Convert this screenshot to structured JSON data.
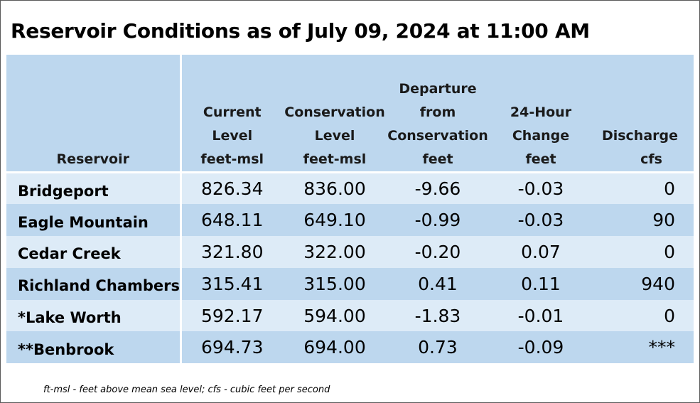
{
  "title": "Reservoir Conditions as of July 09, 2024 at 11:00 AM",
  "table": {
    "headers": [
      {
        "lines": [
          "Reservoir"
        ],
        "unit": ""
      },
      {
        "lines": [
          "Current",
          "Level"
        ],
        "unit": "feet-msl"
      },
      {
        "lines": [
          "Conservation",
          "Level"
        ],
        "unit": "feet-msl"
      },
      {
        "lines": [
          "Departure",
          "from",
          "Conservation"
        ],
        "unit": "feet"
      },
      {
        "lines": [
          "24-Hour",
          "Change"
        ],
        "unit": "feet"
      },
      {
        "lines": [
          "Discharge"
        ],
        "unit": "cfs"
      }
    ],
    "rows": [
      {
        "name": "Bridgeport",
        "current": "826.34",
        "conservation": "836.00",
        "departure": "-9.66",
        "change": "-0.03",
        "discharge": "0"
      },
      {
        "name": "Eagle Mountain",
        "current": "648.11",
        "conservation": "649.10",
        "departure": "-0.99",
        "change": "-0.03",
        "discharge": "90"
      },
      {
        "name": "Cedar Creek",
        "current": "321.80",
        "conservation": "322.00",
        "departure": "-0.20",
        "change": "0.07",
        "discharge": "0"
      },
      {
        "name": "Richland Chambers",
        "current": "315.41",
        "conservation": "315.00",
        "departure": "0.41",
        "change": "0.11",
        "discharge": "940"
      },
      {
        "name": "*Lake Worth",
        "current": "592.17",
        "conservation": "594.00",
        "departure": "-1.83",
        "change": "-0.01",
        "discharge": "0"
      },
      {
        "name": "**Benbrook",
        "current": "694.73",
        "conservation": "694.00",
        "departure": "0.73",
        "change": "-0.09",
        "discharge": "***"
      }
    ]
  },
  "footnote": "ft-msl - feet above mean sea level; cfs - cubic feet per second",
  "colors": {
    "header_bg": "#bdd7ee",
    "row_light": "#ddebf7",
    "row_dark": "#bdd7ee"
  }
}
